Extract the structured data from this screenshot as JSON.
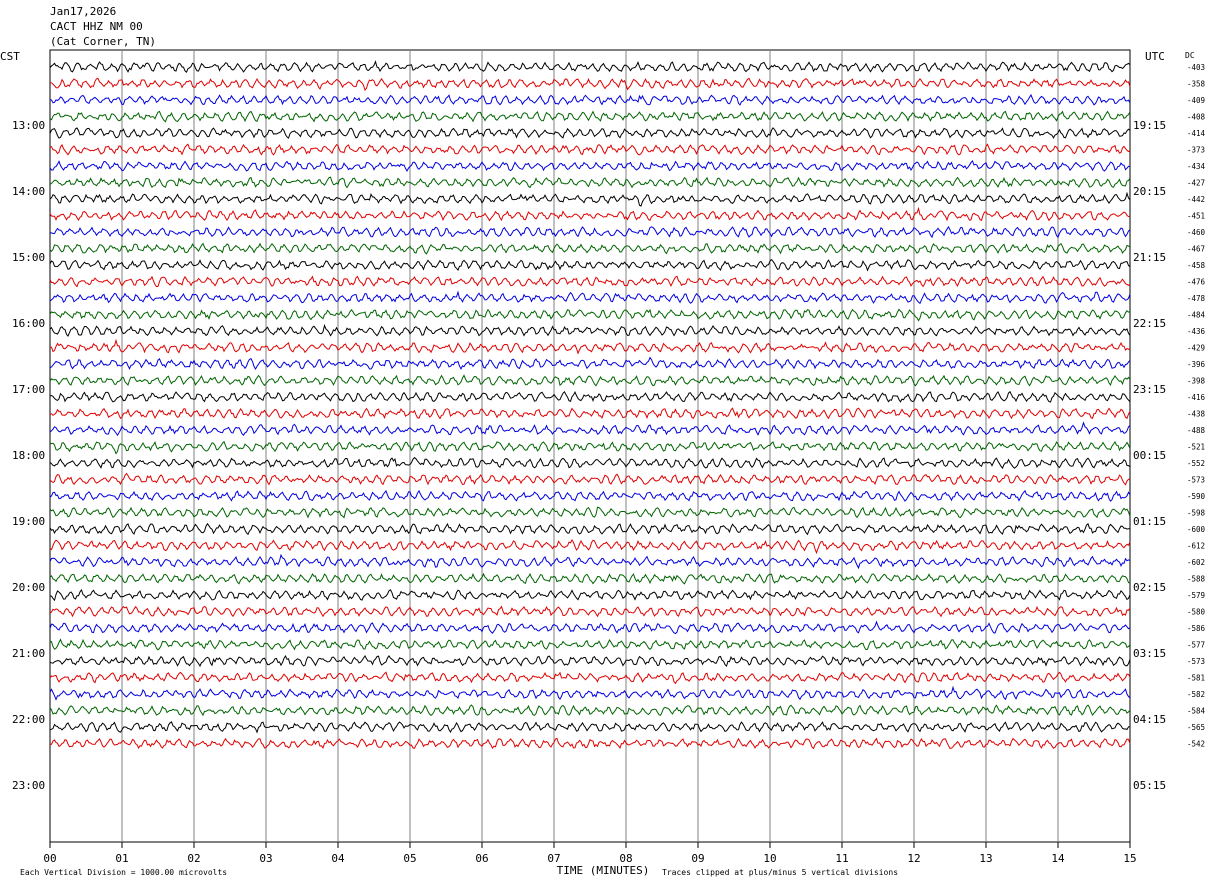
{
  "header": {
    "date": "Jan17,2026",
    "station": "CACT HHZ NM 00",
    "location": "(Cat Corner, TN)"
  },
  "chart_data": {
    "type": "line",
    "description_kind": "helicorder",
    "left_timezone": "CST",
    "right_timezone": "UTC",
    "dc_label": "DC",
    "xlabel": "TIME (MINUTES)",
    "xlim": [
      0,
      15
    ],
    "x_tick_labels": [
      "00",
      "01",
      "02",
      "03",
      "04",
      "05",
      "06",
      "07",
      "08",
      "09",
      "10",
      "11",
      "12",
      "13",
      "14",
      "15"
    ],
    "left_hour_labels": [
      "13:00",
      "14:00",
      "15:00",
      "16:00",
      "17:00",
      "18:00",
      "19:00",
      "20:00",
      "21:00",
      "22:00",
      "23:00"
    ],
    "right_hour_labels": [
      "19:15",
      "20:15",
      "21:15",
      "22:15",
      "23:15",
      "00:15",
      "01:15",
      "02:15",
      "03:15",
      "04:15",
      "05:15"
    ],
    "traces_per_hour": 4,
    "first_trace_offset": 4,
    "trace_count": 42,
    "trace_colors": [
      "#000000",
      "#e00000",
      "#0000e0",
      "#006400"
    ],
    "dc_offsets": [
      "-403",
      "-358",
      "-409",
      "-408",
      "-414",
      "-373",
      "-434",
      "-427",
      "-442",
      "-451",
      "-460",
      "-467",
      "-458",
      "-476",
      "-478",
      "-484",
      "-436",
      "-429",
      "-396",
      "-398",
      "-416",
      "-438",
      "-488",
      "-521",
      "-552",
      "-573",
      "-590",
      "-598",
      "-600",
      "-612",
      "-602",
      "-588",
      "-579",
      "-580",
      "-586",
      "-577",
      "-573",
      "-581",
      "-582",
      "-584",
      "-565",
      "-542"
    ],
    "footer_left": "Each Vertical Division = 1000.00 microvolts",
    "footer_right": "Traces clipped at plus/minus 5 vertical divisions"
  }
}
